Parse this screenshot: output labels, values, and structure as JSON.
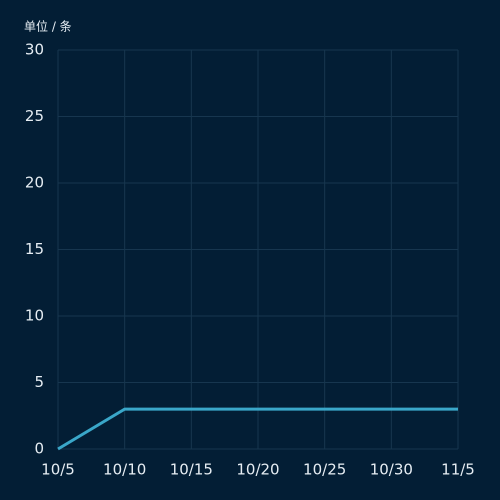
{
  "chart_data": {
    "type": "line",
    "y_axis_label": "单位 / 条",
    "categories": [
      "10/5",
      "10/10",
      "10/15",
      "10/20",
      "10/25",
      "10/30",
      "11/5"
    ],
    "series": [
      {
        "color": "#3aa7c9",
        "values": [
          0,
          3,
          3,
          3,
          3,
          3,
          3
        ]
      }
    ],
    "ylim": [
      0,
      30
    ],
    "yticks": [
      0,
      5,
      10,
      15,
      20,
      25,
      30
    ],
    "grid": true
  }
}
